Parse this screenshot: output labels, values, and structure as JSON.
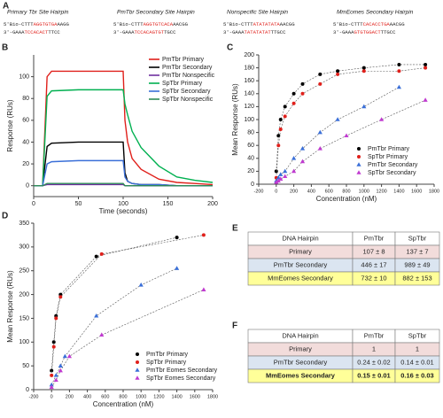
{
  "hairpin_panel": "A",
  "hairpins": [
    {
      "title": "Primary Tbr Site Hairpin",
      "top": [
        "5'Bio-CTTT",
        "AGGTGTGA",
        "AAGG"
      ],
      "bottom": [
        "3'-GAAA",
        "TCCACACT",
        "TTCC"
      ]
    },
    {
      "title": "PmTbr Secondary Site Hairpin",
      "top": [
        "5'Bio-CTTT",
        "AGGTGTCACA",
        "AACGG"
      ],
      "bottom": [
        "3'-GAAA",
        "TCCACAGTGT",
        "TGCC"
      ]
    },
    {
      "title": "Nonspecific Site Hairpin",
      "top": [
        "5'Bio-CTTT",
        "ATATATATA",
        "AACGG"
      ],
      "bottom": [
        "3'-GAAA",
        "TATATATAT",
        "TTGCC"
      ]
    },
    {
      "title": "MmEomes Secondary Hairpin",
      "top": [
        "5'Bio-CTTT",
        "CACACCTGA",
        "AACGG"
      ],
      "bottom": [
        "3'-GAAA",
        "GTGTGGACT",
        "TTGCC"
      ]
    }
  ],
  "chart_data": [
    {
      "type": "line",
      "panel": "B",
      "x_label": "Time (seconds)",
      "y_label": "Response (RUs)",
      "xlim": [
        0,
        200
      ],
      "ylim": [
        -10,
        120
      ],
      "xticks": [
        0,
        50,
        100,
        150,
        200
      ],
      "yticks": [
        0,
        20,
        40,
        60,
        80,
        100
      ],
      "legend": "upper right",
      "x": [
        0,
        10,
        15,
        20,
        50,
        75,
        100,
        102,
        105,
        110,
        120,
        140,
        160,
        180,
        200
      ],
      "series": [
        {
          "name": "PmTbr Primary",
          "color": "#e0201b",
          "values": [
            0,
            0,
            100,
            105,
            105,
            105,
            105,
            60,
            40,
            25,
            15,
            6,
            3,
            2,
            1
          ]
        },
        {
          "name": "PmTbr Secondary",
          "color": "#000000",
          "values": [
            0,
            0,
            36,
            39,
            40,
            40,
            40,
            12,
            4,
            2,
            1,
            1,
            0,
            0,
            0
          ]
        },
        {
          "name": "PmTbr Nonspecific",
          "color": "#7030a0",
          "values": [
            0,
            0,
            1,
            1,
            1,
            1,
            1,
            0,
            0,
            0,
            0,
            0,
            0,
            0,
            0
          ]
        },
        {
          "name": "SpTbr Primary",
          "color": "#00b050",
          "values": [
            0,
            0,
            82,
            87,
            88,
            88,
            88,
            75,
            65,
            50,
            35,
            18,
            8,
            5,
            3
          ]
        },
        {
          "name": "SpTbr Secondary",
          "color": "#3a6fd8",
          "values": [
            0,
            0,
            20,
            22,
            23,
            23,
            23,
            8,
            4,
            2,
            1,
            1,
            0,
            0,
            0
          ]
        },
        {
          "name": "SpTbr Nonspecific",
          "color": "#2e8b57",
          "values": [
            0,
            0,
            2,
            2,
            2,
            2,
            2,
            0,
            0,
            0,
            0,
            0,
            0,
            0,
            0
          ]
        }
      ]
    },
    {
      "type": "scatter",
      "panel": "C",
      "x_label": "Concentration (nM)",
      "y_label": "Mean Response (RUs)",
      "xlim": [
        -200,
        1800
      ],
      "ylim": [
        0,
        200
      ],
      "xticks": [
        -200,
        0,
        200,
        400,
        600,
        800,
        1000,
        1200,
        1400,
        1600,
        1800
      ],
      "yticks": [
        0,
        20,
        40,
        60,
        80,
        100,
        120,
        140,
        160,
        180,
        200
      ],
      "legend": "lower right",
      "series": [
        {
          "name": "PmTbr Primary",
          "color": "#000000",
          "marker": "circle",
          "x": [
            0,
            25,
            50,
            100,
            200,
            300,
            500,
            700,
            1000,
            1400,
            1700
          ],
          "values": [
            20,
            75,
            100,
            120,
            140,
            155,
            170,
            175,
            180,
            185,
            185
          ]
        },
        {
          "name": "SpTbr Primary",
          "color": "#e0201b",
          "marker": "circle",
          "x": [
            0,
            25,
            50,
            100,
            200,
            300,
            500,
            700,
            1000,
            1400,
            1700
          ],
          "values": [
            10,
            60,
            85,
            105,
            125,
            140,
            155,
            170,
            175,
            175,
            180
          ]
        },
        {
          "name": "PmTbr Secondary",
          "color": "#3a6fd8",
          "marker": "triangle",
          "x": [
            0,
            25,
            50,
            100,
            200,
            300,
            500,
            700,
            1000,
            1400
          ],
          "values": [
            5,
            10,
            15,
            20,
            40,
            55,
            80,
            100,
            120,
            150
          ]
        },
        {
          "name": "SpTbr Secondary",
          "color": "#c03ad0",
          "marker": "triangle",
          "x": [
            0,
            25,
            50,
            100,
            200,
            300,
            500,
            800,
            1200,
            1700
          ],
          "values": [
            3,
            5,
            8,
            12,
            20,
            35,
            55,
            75,
            100,
            130
          ]
        }
      ]
    },
    {
      "type": "scatter",
      "panel": "D",
      "x_label": "Concentration (nM)",
      "y_label": "Mean Response (RUs)",
      "xlim": [
        -200,
        1800
      ],
      "ylim": [
        0,
        350
      ],
      "xticks": [
        -200,
        0,
        200,
        400,
        600,
        800,
        1000,
        1200,
        1400,
        1600,
        1800
      ],
      "yticks": [
        0,
        50,
        100,
        150,
        200,
        250,
        300,
        350
      ],
      "legend": "lower right",
      "series": [
        {
          "name": "PmTbr Primary",
          "color": "#000000",
          "marker": "circle",
          "x": [
            0,
            25,
            50,
            100,
            500,
            1400
          ],
          "values": [
            40,
            100,
            155,
            200,
            280,
            320
          ]
        },
        {
          "name": "SpTbr Primary",
          "color": "#e0201b",
          "marker": "circle",
          "x": [
            0,
            25,
            50,
            100,
            560,
            1700
          ],
          "values": [
            30,
            90,
            150,
            195,
            285,
            325
          ]
        },
        {
          "name": "PmTbr Eomes Secondary",
          "color": "#3a6fd8",
          "marker": "triangle",
          "x": [
            0,
            50,
            100,
            150,
            500,
            1000,
            1400
          ],
          "values": [
            10,
            30,
            50,
            70,
            155,
            220,
            255
          ]
        },
        {
          "name": "SpTbr Eomes Secondary",
          "color": "#c03ad0",
          "marker": "triangle",
          "x": [
            0,
            50,
            100,
            200,
            560,
            1700
          ],
          "values": [
            5,
            20,
            40,
            70,
            115,
            210
          ]
        }
      ]
    }
  ],
  "tables": [
    {
      "panel": "E",
      "header": [
        "DNA Hairpin",
        "PmTbr",
        "SpTbr"
      ],
      "row_colors": [
        "#f2dcdb",
        "#dbe5f1",
        "#ffff99"
      ],
      "rows": [
        [
          "Primary",
          "107 ± 8",
          "137 ± 7"
        ],
        [
          "PmTbr Secondary",
          "446 ± 17",
          "989 ± 49"
        ],
        [
          "MmEomes Secondary",
          "732 ± 10",
          "882 ± 153"
        ]
      ]
    },
    {
      "panel": "F",
      "header": [
        "DNA Hairpin",
        "PmTbr",
        "SpTbr"
      ],
      "row_colors": [
        "#f2dcdb",
        "#dbe5f1",
        "#ffff99"
      ],
      "rows": [
        [
          "Primary",
          "1",
          "1"
        ],
        [
          "PmTbr Secondary",
          "0.24 ± 0.02",
          "0.14 ± 0.01"
        ],
        [
          "MmEomes Secondary",
          "0.15 ± 0.01",
          "0.16 ± 0.03"
        ]
      ]
    }
  ]
}
